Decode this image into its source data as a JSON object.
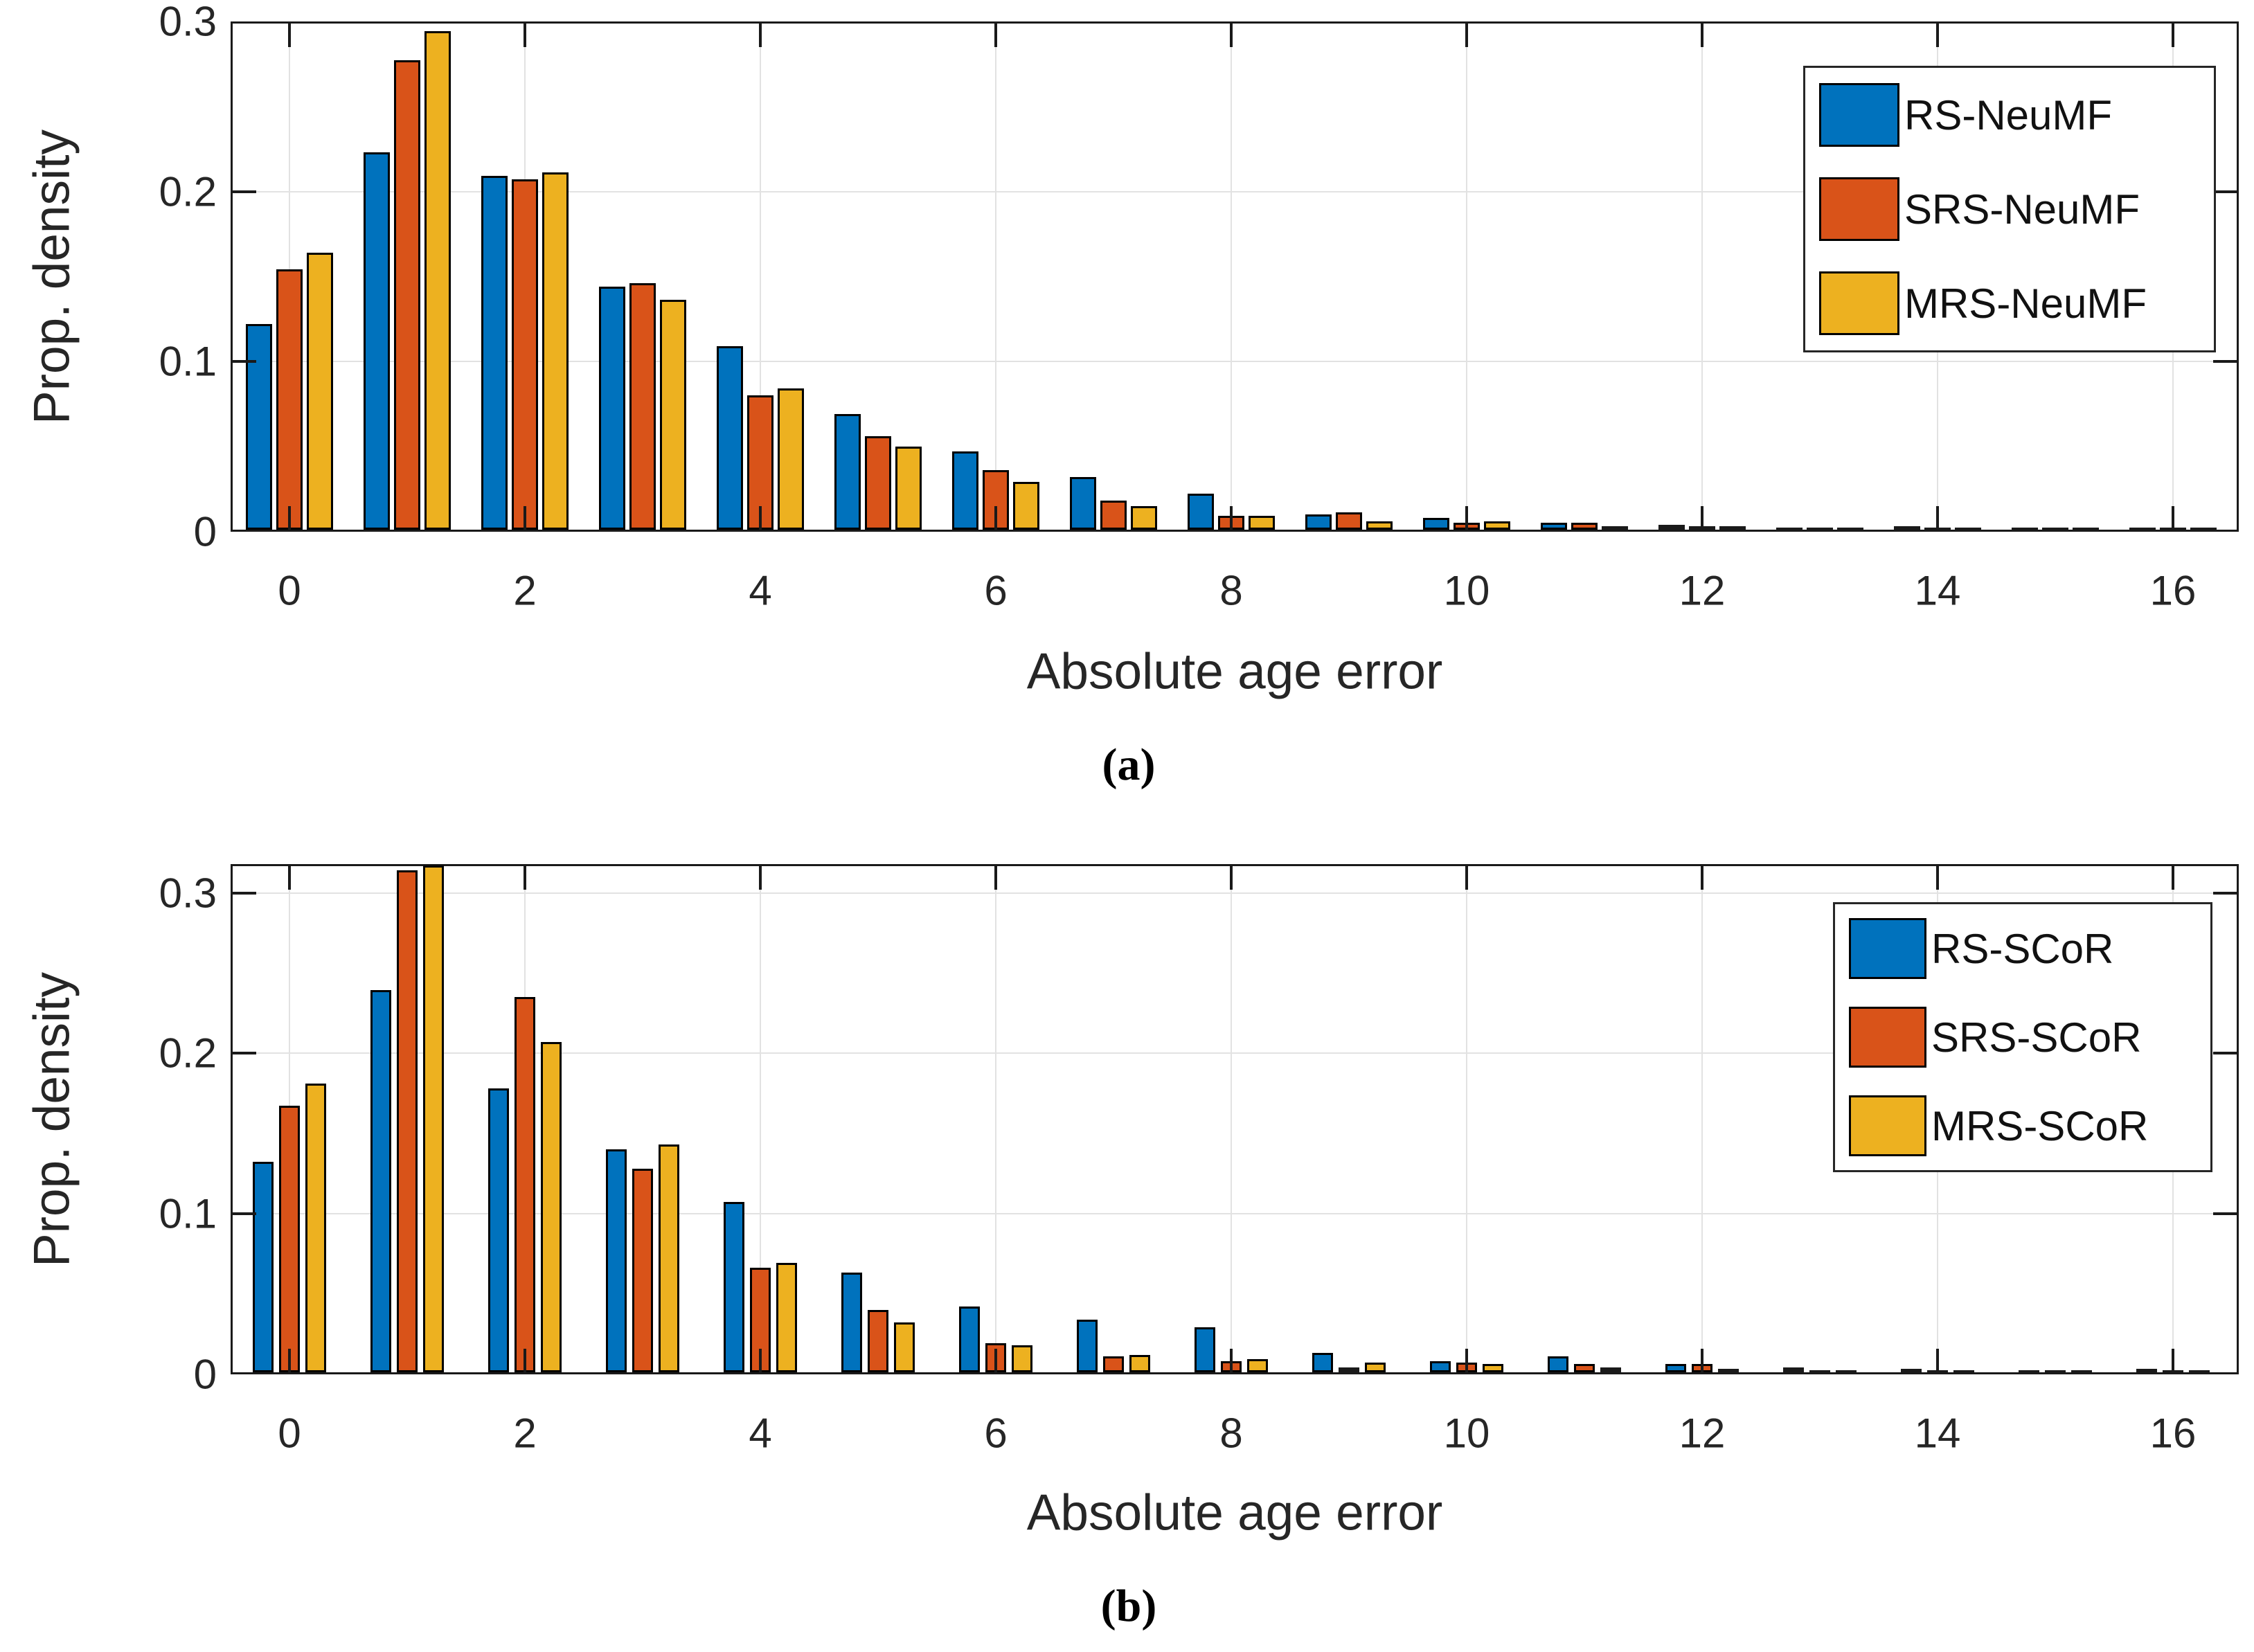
{
  "figure": {
    "background": "#ffffff",
    "text_color": "#262626",
    "grid_color": "#e2e2e2",
    "bar_edge_color": "#000000"
  },
  "chart_data": [
    {
      "id": "a",
      "type": "bar",
      "caption": "(a)",
      "xlabel": "Absolute age error",
      "ylabel": "Prop. density",
      "categories": [
        0,
        1,
        2,
        3,
        4,
        5,
        6,
        7,
        8,
        9,
        10,
        11,
        12,
        13,
        14,
        15,
        16
      ],
      "xtick_labels": [
        "0",
        "2",
        "4",
        "6",
        "8",
        "10",
        "12",
        "14",
        "16"
      ],
      "ytick_labels": [
        "0",
        "0.1",
        "0.2",
        "0.3"
      ],
      "ytick_values": [
        0,
        0.1,
        0.2,
        0.3
      ],
      "ylim": [
        0,
        0.3
      ],
      "grid": true,
      "legend_position": "top-right",
      "series": [
        {
          "name": "RS-NeuMF",
          "color": "#0072BD",
          "values": [
            0.121,
            0.222,
            0.208,
            0.143,
            0.108,
            0.068,
            0.046,
            0.031,
            0.021,
            0.009,
            0.007,
            0.004,
            0.003,
            0.001,
            0.002,
            0.0005,
            0.001
          ]
        },
        {
          "name": "SRS-NeuMF",
          "color": "#D95319",
          "values": [
            0.153,
            0.276,
            0.206,
            0.145,
            0.079,
            0.055,
            0.035,
            0.017,
            0.008,
            0.01,
            0.004,
            0.004,
            0.002,
            0.0005,
            0.0005,
            0.0003,
            0.0005
          ]
        },
        {
          "name": "MRS-NeuMF",
          "color": "#EDB120",
          "values": [
            0.163,
            0.293,
            0.21,
            0.135,
            0.083,
            0.049,
            0.028,
            0.014,
            0.008,
            0.005,
            0.005,
            0.002,
            0.002,
            0.001,
            0.0005,
            0.0003,
            0.0003
          ]
        }
      ]
    },
    {
      "id": "b",
      "type": "bar",
      "caption": "(b)",
      "xlabel": "Absolute age error",
      "ylabel": "Prop. density",
      "categories": [
        0,
        1,
        2,
        3,
        4,
        5,
        6,
        7,
        8,
        9,
        10,
        11,
        12,
        13,
        14,
        15,
        16
      ],
      "xtick_labels": [
        "0",
        "2",
        "4",
        "6",
        "8",
        "10",
        "12",
        "14",
        "16"
      ],
      "ytick_labels": [
        "0",
        "0.1",
        "0.2",
        "0.3"
      ],
      "ytick_values": [
        0,
        0.1,
        0.2,
        0.3
      ],
      "ylim": [
        0,
        0.318
      ],
      "grid": true,
      "legend_position": "top-right",
      "series": [
        {
          "name": "RS-SCoR",
          "color": "#0072BD",
          "values": [
            0.131,
            0.238,
            0.177,
            0.139,
            0.106,
            0.062,
            0.041,
            0.033,
            0.028,
            0.012,
            0.007,
            0.01,
            0.005,
            0.003,
            0.002,
            0.001,
            0.002
          ]
        },
        {
          "name": "SRS-SCoR",
          "color": "#D95319",
          "values": [
            0.166,
            0.313,
            0.234,
            0.127,
            0.065,
            0.039,
            0.018,
            0.01,
            0.007,
            0.003,
            0.006,
            0.005,
            0.005,
            0.001,
            0.001,
            0.0005,
            0.0003
          ]
        },
        {
          "name": "MRS-SCoR",
          "color": "#EDB120",
          "values": [
            0.18,
            0.316,
            0.206,
            0.142,
            0.068,
            0.031,
            0.017,
            0.011,
            0.008,
            0.006,
            0.005,
            0.003,
            0.002,
            0.001,
            0.001,
            0.0003,
            0.0003
          ]
        }
      ]
    }
  ]
}
